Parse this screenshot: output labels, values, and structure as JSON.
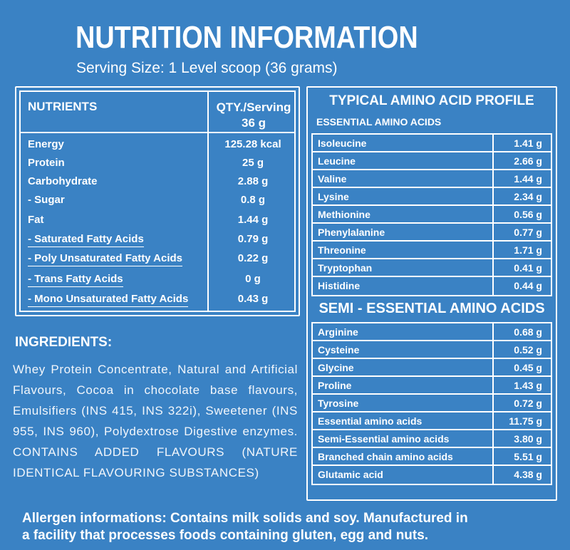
{
  "title": "NUTRITION INFORMATION",
  "serving_size": "Serving Size: 1 Level scoop (36 grams)",
  "nutrients": {
    "header_name": "NUTRIENTS",
    "header_qty_line1": "QTY./Serving",
    "header_qty_line2": "36 g",
    "rows": [
      {
        "name": "Energy",
        "qty": "125.28 kcal"
      },
      {
        "name": "Protein",
        "qty": "25 g"
      },
      {
        "name": "Carbohydrate",
        "qty": "2.88 g"
      },
      {
        "name": "- Sugar",
        "qty": "0.8 g"
      },
      {
        "name": "Fat",
        "qty": "1.44 g"
      },
      {
        "name": "- Saturated Fatty Acids",
        "qty": "0.79 g"
      },
      {
        "name": "- Poly Unsaturated Fatty Acids",
        "qty": "0.22 g"
      },
      {
        "name": "- Trans Fatty Acids",
        "qty": "0 g"
      },
      {
        "name": "- Mono Unsaturated Fatty Acids",
        "qty": "0.43 g"
      }
    ]
  },
  "ingredients": {
    "title": "INGREDIENTS:",
    "text": "Whey Protein Concentrate, Natural and Artificial Flavours, Cocoa in chocolate base flavours, Emulsifiers (INS 415, INS 322i), Sweetener (INS 955, INS 960), Polydextrose Digestive enzymes. CONTAINS ADDED FLAVOURS (NATURE IDENTICAL FLAVOURING SUBSTANCES)"
  },
  "amino": {
    "title": "TYPICAL AMINO ACID PROFILE",
    "essential_title": "ESSENTIAL AMINO ACIDS",
    "essential": [
      {
        "name": "Isoleucine",
        "qty": "1.41 g"
      },
      {
        "name": "Leucine",
        "qty": "2.66 g"
      },
      {
        "name": "Valine",
        "qty": "1.44 g"
      },
      {
        "name": "Lysine",
        "qty": "2.34 g"
      },
      {
        "name": "Methionine",
        "qty": "0.56 g"
      },
      {
        "name": "Phenylalanine",
        "qty": "0.77 g"
      },
      {
        "name": "Threonine",
        "qty": "1.71 g"
      },
      {
        "name": "Tryptophan",
        "qty": "0.41 g"
      },
      {
        "name": "Histidine",
        "qty": "0.44 g"
      }
    ],
    "semi_title": "SEMI - ESSENTIAL AMINO ACIDS",
    "semi": [
      {
        "name": "Arginine",
        "qty": "0.68 g"
      },
      {
        "name": "Cysteine",
        "qty": "0.52 g"
      },
      {
        "name": "Glycine",
        "qty": "0.45 g"
      },
      {
        "name": "Proline",
        "qty": "1.43 g"
      },
      {
        "name": "Tyrosine",
        "qty": "0.72 g"
      },
      {
        "name": "Essential amino acids",
        "qty": "11.75 g"
      },
      {
        "name": "Semi-Essential amino acids",
        "qty": "3.80 g"
      },
      {
        "name": "Branched chain amino acids",
        "qty": "5.51 g"
      },
      {
        "name": "Glutamic acid",
        "qty": "4.38 g"
      }
    ]
  },
  "allergen": {
    "line1": "Allergen informations: Contains milk solids and soy. Manufactured in",
    "line2": "a facility that processes foods containing gluten, egg and nuts."
  },
  "colors": {
    "background": "#3a82c4",
    "text": "#ffffff"
  }
}
